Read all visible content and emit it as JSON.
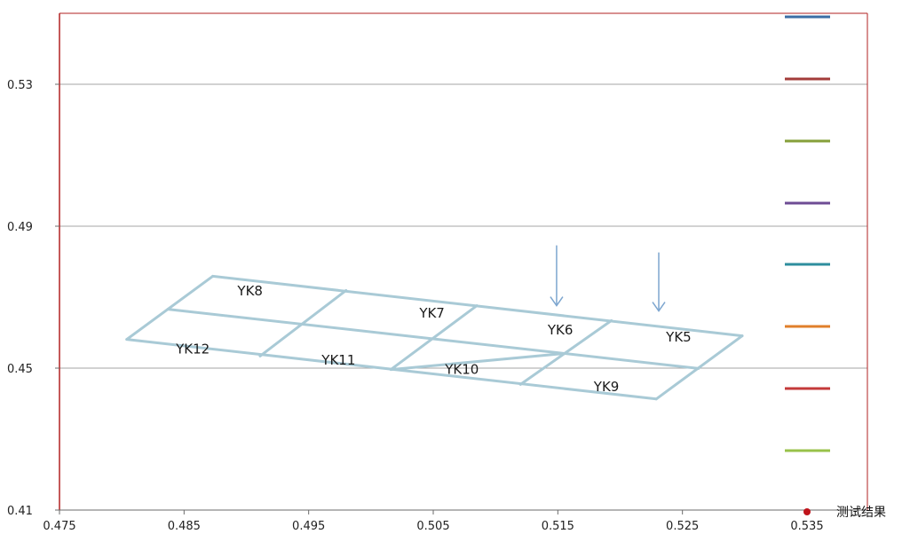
{
  "chart_data": {
    "type": "scatter",
    "title": "",
    "xlabel": "",
    "ylabel": "",
    "xlim": [
      0.475,
      0.535
    ],
    "ylim": [
      0.41,
      0.55
    ],
    "x_ticks": [
      "0.475",
      "0.485",
      "0.495",
      "0.505",
      "0.515",
      "0.525",
      "0.535"
    ],
    "y_ticks": [
      "0.41",
      "0.45",
      "0.49",
      "0.53"
    ],
    "y_gridlines": [
      0.45,
      0.49,
      0.53
    ],
    "frame_color": "#b22222",
    "grid_color": "#a6a6a6",
    "outline_color": "#a9cad6",
    "arrow_color": "#7da6cf",
    "legend_position": "right",
    "legend_entries": [
      {
        "label": "",
        "kind": "line",
        "color": "#3b6ea5"
      },
      {
        "label": "",
        "kind": "line",
        "color": "#a33c3a"
      },
      {
        "label": "",
        "kind": "line",
        "color": "#86a03a"
      },
      {
        "label": "",
        "kind": "line",
        "color": "#6e4c94"
      },
      {
        "label": "",
        "kind": "line",
        "color": "#2e8e9e"
      },
      {
        "label": "",
        "kind": "line",
        "color": "#e07f2a"
      },
      {
        "label": "",
        "kind": "line",
        "color": "#c43a3a"
      },
      {
        "label": "",
        "kind": "line",
        "color": "#98c24a"
      },
      {
        "label": "测试结果",
        "kind": "marker",
        "color": "#c0141b"
      }
    ],
    "outline_segments": [
      [
        [
          0.4804,
          0.4581
        ],
        [
          0.4873,
          0.4759
        ]
      ],
      [
        [
          0.4873,
          0.4759
        ],
        [
          0.5298,
          0.4591
        ]
      ],
      [
        [
          0.5298,
          0.4591
        ],
        [
          0.5229,
          0.4413
        ]
      ],
      [
        [
          0.5229,
          0.4413
        ],
        [
          0.4804,
          0.4581
        ]
      ],
      [
        [
          0.4837,
          0.4666
        ],
        [
          0.5263,
          0.4499
        ]
      ],
      [
        [
          0.4911,
          0.4534
        ],
        [
          0.498,
          0.4719
        ]
      ],
      [
        [
          0.5016,
          0.4496
        ],
        [
          0.5085,
          0.4676
        ]
      ],
      [
        [
          0.512,
          0.4454
        ],
        [
          0.5193,
          0.4634
        ]
      ],
      [
        [
          0.5016,
          0.4496
        ],
        [
          0.5154,
          0.4541
        ]
      ]
    ],
    "cell_labels": [
      {
        "text": "YK8",
        "x": 0.4903,
        "y": 0.4717
      },
      {
        "text": "YK7",
        "x": 0.5049,
        "y": 0.4655
      },
      {
        "text": "YK6",
        "x": 0.5152,
        "y": 0.4607
      },
      {
        "text": "YK5",
        "x": 0.5247,
        "y": 0.4588
      },
      {
        "text": "YK12",
        "x": 0.4857,
        "y": 0.4554
      },
      {
        "text": "YK11",
        "x": 0.4974,
        "y": 0.4522
      },
      {
        "text": "YK10",
        "x": 0.5073,
        "y": 0.4496
      },
      {
        "text": "YK9",
        "x": 0.5189,
        "y": 0.4447
      }
    ],
    "arrows": [
      {
        "x": 0.5149,
        "y_from": 0.4846,
        "y_to": 0.4676
      },
      {
        "x": 0.5231,
        "y_from": 0.4826,
        "y_to": 0.4661
      }
    ]
  }
}
